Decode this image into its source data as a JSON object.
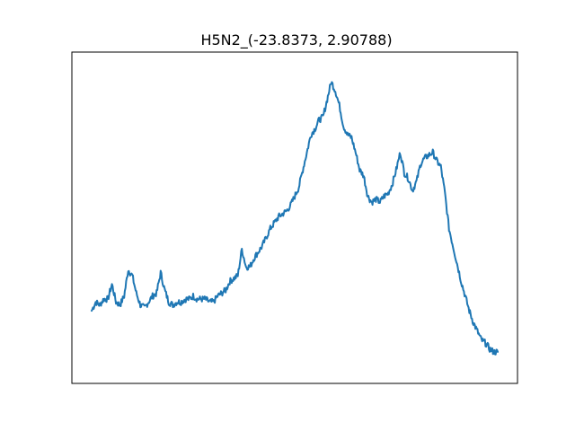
{
  "chart_data": {
    "type": "line",
    "title": "H5N2_(-23.8373, 2.90788)",
    "xlabel": "",
    "ylabel": "",
    "axes_visible": false,
    "grid": false,
    "legend": "none",
    "series_color": "#1f77b4",
    "x_range": [
      0,
      100
    ],
    "y_range": [
      0,
      100
    ],
    "series": [
      {
        "points": [
          [
            0,
            18
          ],
          [
            1,
            21
          ],
          [
            2,
            20
          ],
          [
            3,
            22
          ],
          [
            4,
            22
          ],
          [
            5,
            27
          ],
          [
            6,
            21
          ],
          [
            7,
            20
          ],
          [
            8,
            23
          ],
          [
            9,
            32
          ],
          [
            10,
            30
          ],
          [
            11,
            24
          ],
          [
            12,
            20
          ],
          [
            13,
            19
          ],
          [
            14,
            21
          ],
          [
            15,
            23
          ],
          [
            16,
            24
          ],
          [
            17,
            31
          ],
          [
            18,
            25
          ],
          [
            19,
            21
          ],
          [
            20,
            20
          ],
          [
            21,
            21
          ],
          [
            22,
            21
          ],
          [
            23,
            22
          ],
          [
            24,
            22
          ],
          [
            25,
            23
          ],
          [
            26,
            22
          ],
          [
            27,
            22
          ],
          [
            28,
            22
          ],
          [
            29,
            21
          ],
          [
            30,
            21
          ],
          [
            31,
            23
          ],
          [
            32,
            24
          ],
          [
            33,
            25
          ],
          [
            34,
            28
          ],
          [
            35,
            29
          ],
          [
            36,
            30
          ],
          [
            37,
            39
          ],
          [
            38,
            33
          ],
          [
            39,
            33
          ],
          [
            40,
            36
          ],
          [
            41,
            38
          ],
          [
            42,
            40
          ],
          [
            43,
            43
          ],
          [
            44,
            46
          ],
          [
            45,
            48
          ],
          [
            46,
            50
          ],
          [
            47,
            51
          ],
          [
            48,
            52
          ],
          [
            49,
            54
          ],
          [
            50,
            57
          ],
          [
            51,
            60
          ],
          [
            52,
            66
          ],
          [
            53,
            72
          ],
          [
            54,
            78
          ],
          [
            55,
            80
          ],
          [
            56,
            83
          ],
          [
            57,
            84
          ],
          [
            58,
            90
          ],
          [
            59,
            96
          ],
          [
            60,
            93
          ],
          [
            61,
            88
          ],
          [
            62,
            81
          ],
          [
            63,
            78
          ],
          [
            64,
            77
          ],
          [
            65,
            72
          ],
          [
            66,
            66
          ],
          [
            67,
            64
          ],
          [
            68,
            57
          ],
          [
            69,
            55
          ],
          [
            70,
            56
          ],
          [
            71,
            55
          ],
          [
            72,
            57
          ],
          [
            73,
            58
          ],
          [
            74,
            61
          ],
          [
            75,
            66
          ],
          [
            76,
            72
          ],
          [
            77,
            65
          ],
          [
            78,
            63
          ],
          [
            79,
            59
          ],
          [
            80,
            62
          ],
          [
            81,
            68
          ],
          [
            82,
            70
          ],
          [
            83,
            71
          ],
          [
            84,
            72
          ],
          [
            85,
            69
          ],
          [
            86,
            67
          ],
          [
            87,
            58
          ],
          [
            88,
            46
          ],
          [
            89,
            40
          ],
          [
            90,
            34
          ],
          [
            91,
            28
          ],
          [
            92,
            23
          ],
          [
            93,
            18
          ],
          [
            94,
            14
          ],
          [
            95,
            11
          ],
          [
            96,
            8
          ],
          [
            97,
            7
          ],
          [
            98,
            5
          ],
          [
            99,
            4
          ],
          [
            100,
            4
          ]
        ]
      }
    ]
  }
}
